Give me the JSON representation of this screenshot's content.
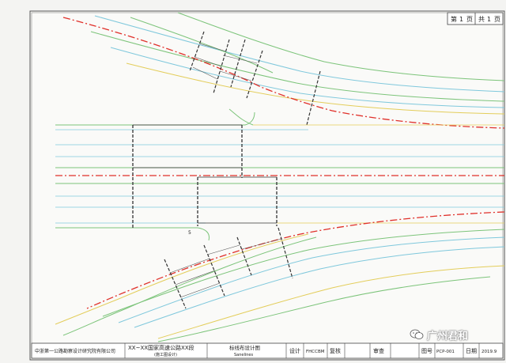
{
  "drawing": {
    "sheet_box": {
      "label_a": "第",
      "page_a": "1",
      "unit_a": "页",
      "label_b": "共",
      "page_b": "1",
      "unit_b": "页"
    },
    "labels": {
      "small_label": "5"
    }
  },
  "title_block": {
    "company": "中浙第一公路勘察设计研究院有限公司",
    "project_line1": "XX~XX国家高速公路XX段",
    "project_line2": "(施工图设计)",
    "drawing_title": "标线布设计图",
    "drawing_title_en": "Sanelines",
    "design_label": "设计",
    "design_value": "FHCCBM",
    "review_label": "复核",
    "approve_label": "审查",
    "drawing_no_label": "图号",
    "drawing_no_value": "PCP-001",
    "date_label": "日期",
    "date_value": "2019.9"
  },
  "watermark": {
    "text": "广州君和",
    "icon": "wechat-icon"
  },
  "colors": {
    "centerline": "#e0302a",
    "green_line": "#7cc47a",
    "cyan_line": "#7fc8dc",
    "yellow_line": "#e3cd5a",
    "gantry": "#333333",
    "frame": "#444444"
  }
}
